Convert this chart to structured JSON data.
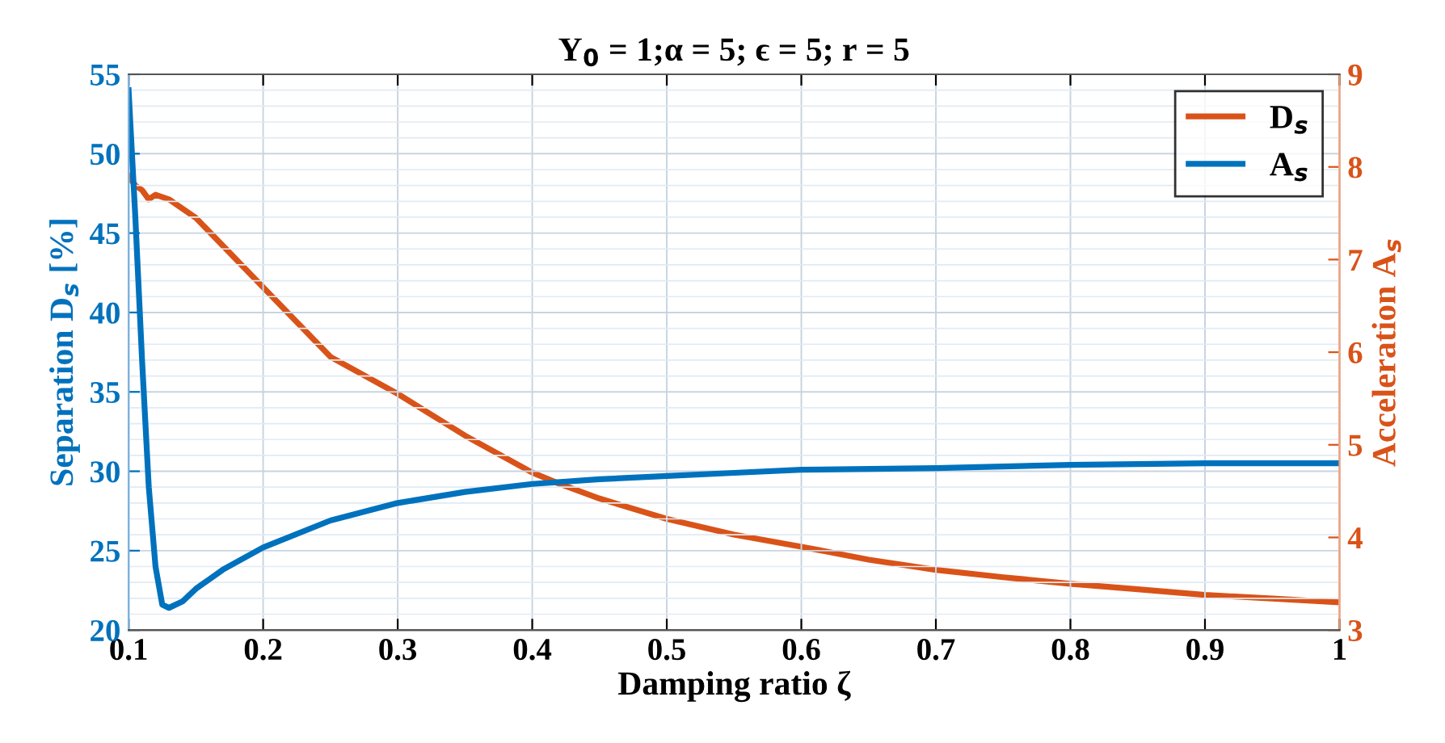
{
  "chart_data": {
    "type": "line",
    "title": "Y$_{0}$ = 1;α = 5; ϵ = 5; r = 5",
    "xlabel": "Damping ratio ζ",
    "ylabel": "Separation D$_{s}$ [%]",
    "y2label": "Acceleration A$_{s}$",
    "series": [
      {
        "name": "D$_{s}$",
        "color": "#d95319",
        "axis": "y2",
        "x": [
          0.1,
          0.105,
          0.11,
          0.115,
          0.12,
          0.13,
          0.15,
          0.2,
          0.25,
          0.3,
          0.35,
          0.4,
          0.42,
          0.45,
          0.5,
          0.55,
          0.6,
          0.65,
          0.7,
          0.75,
          0.8,
          0.85,
          0.9,
          0.95,
          1
        ],
        "values": [
          7.9,
          7.8,
          7.75,
          7.65,
          7.7,
          7.65,
          7.45,
          6.7,
          5.95,
          5.55,
          5.1,
          4.7,
          4.58,
          4.42,
          4.2,
          4.03,
          3.9,
          3.76,
          3.65,
          3.57,
          3.5,
          3.44,
          3.38,
          3.34,
          3.3
        ]
      },
      {
        "name": "A$_{s}$",
        "color": "#0072bd",
        "axis": "y",
        "x": [
          0.1,
          0.105,
          0.11,
          0.115,
          0.12,
          0.125,
          0.13,
          0.14,
          0.15,
          0.17,
          0.2,
          0.25,
          0.3,
          0.35,
          0.4,
          0.45,
          0.5,
          0.55,
          0.6,
          0.7,
          0.8,
          0.9,
          1
        ],
        "values": [
          54,
          46,
          37,
          29,
          24,
          21.6,
          21.4,
          21.8,
          22.6,
          23.8,
          25.2,
          26.9,
          28.0,
          28.7,
          29.2,
          29.5,
          29.7,
          29.9,
          30.1,
          30.2,
          30.4,
          30.5,
          30.5
        ]
      }
    ],
    "xlim": [
      0.1,
      1
    ],
    "xticks": [
      0.1,
      0.2,
      0.3,
      0.4,
      0.5,
      0.6,
      0.7,
      0.8,
      0.9,
      1
    ],
    "ylim": [
      20,
      55
    ],
    "yticks": [
      20,
      25,
      30,
      35,
      40,
      45,
      50,
      55
    ],
    "y2lim": [
      3,
      9
    ],
    "y2ticks": [
      3,
      4,
      5,
      6,
      7,
      8,
      9
    ],
    "grid": true,
    "legend": "top right",
    "line_style": "solid",
    "marker": "none"
  }
}
